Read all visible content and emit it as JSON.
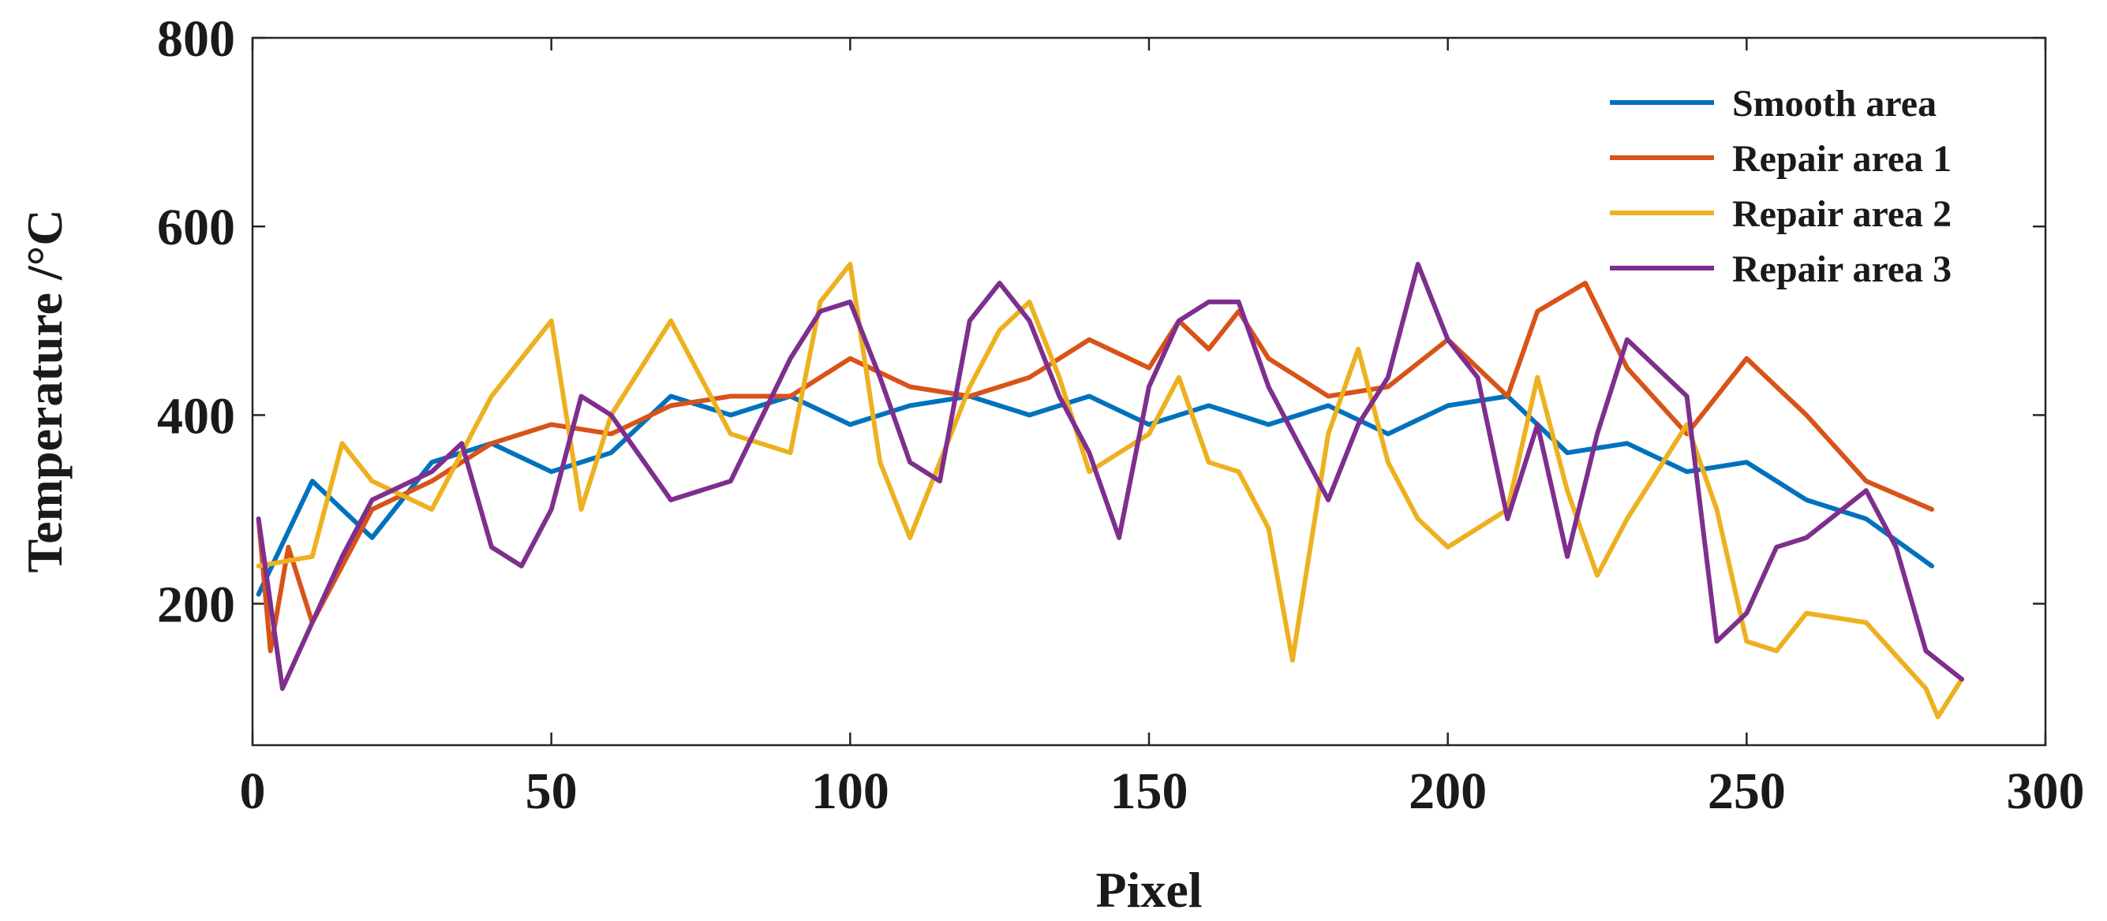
{
  "chart_data": {
    "type": "line",
    "title": "",
    "xlabel": "Pixel",
    "ylabel": "Temperature /°C",
    "xlim": [
      0,
      300
    ],
    "ylim": [
      50,
      800
    ],
    "xticks": [
      0,
      50,
      100,
      150,
      200,
      250,
      300
    ],
    "yticks": [
      200,
      400,
      600,
      800
    ],
    "xtick_labels": [
      "0",
      "50",
      "100",
      "150",
      "200",
      "250",
      "300"
    ],
    "ytick_labels": [
      "200",
      "400",
      "600",
      "800"
    ],
    "grid": false,
    "legend_position": "top-right",
    "series": [
      {
        "name": "Smooth area",
        "color": "#0072BD",
        "x": [
          1,
          10,
          20,
          30,
          40,
          50,
          60,
          70,
          80,
          90,
          100,
          110,
          120,
          130,
          140,
          150,
          160,
          170,
          180,
          190,
          200,
          210,
          220,
          230,
          240,
          250,
          260,
          270,
          281
        ],
        "y": [
          210,
          330,
          270,
          350,
          370,
          340,
          360,
          420,
          400,
          420,
          390,
          410,
          420,
          400,
          420,
          390,
          410,
          390,
          410,
          380,
          410,
          420,
          360,
          370,
          340,
          350,
          310,
          290,
          240
        ]
      },
      {
        "name": "Repair area 1",
        "color": "#D95319",
        "x": [
          1,
          3,
          6,
          10,
          20,
          30,
          40,
          50,
          60,
          70,
          80,
          90,
          100,
          110,
          120,
          130,
          140,
          150,
          155,
          160,
          165,
          170,
          180,
          190,
          200,
          210,
          215,
          223,
          230,
          240,
          250,
          260,
          270,
          281
        ],
        "y": [
          290,
          150,
          260,
          180,
          300,
          330,
          370,
          390,
          380,
          410,
          420,
          420,
          460,
          430,
          420,
          440,
          480,
          450,
          500,
          470,
          510,
          460,
          420,
          430,
          480,
          420,
          510,
          540,
          450,
          380,
          460,
          400,
          330,
          300
        ]
      },
      {
        "name": "Repair area 2",
        "color": "#EDB120",
        "x": [
          1,
          10,
          15,
          20,
          30,
          40,
          50,
          55,
          60,
          70,
          80,
          90,
          95,
          100,
          105,
          110,
          120,
          125,
          130,
          135,
          140,
          150,
          155,
          160,
          165,
          170,
          174,
          180,
          185,
          190,
          195,
          200,
          210,
          215,
          220,
          225,
          230,
          240,
          245,
          250,
          255,
          260,
          270,
          280,
          282,
          286
        ],
        "y": [
          240,
          250,
          370,
          330,
          300,
          420,
          500,
          300,
          400,
          500,
          380,
          360,
          520,
          560,
          350,
          270,
          430,
          490,
          520,
          440,
          340,
          380,
          440,
          350,
          340,
          280,
          140,
          380,
          470,
          350,
          290,
          260,
          300,
          440,
          320,
          230,
          290,
          390,
          300,
          160,
          150,
          190,
          180,
          110,
          80,
          120
        ]
      },
      {
        "name": "Repair area 3",
        "color": "#7E2F8E",
        "x": [
          1,
          5,
          10,
          15,
          20,
          30,
          35,
          40,
          45,
          50,
          55,
          60,
          70,
          80,
          90,
          95,
          100,
          105,
          110,
          115,
          120,
          125,
          130,
          135,
          140,
          145,
          150,
          155,
          160,
          165,
          170,
          175,
          180,
          185,
          190,
          195,
          200,
          205,
          210,
          215,
          220,
          225,
          230,
          240,
          245,
          250,
          255,
          260,
          270,
          275,
          280,
          286
        ],
        "y": [
          290,
          110,
          180,
          250,
          310,
          340,
          370,
          260,
          240,
          300,
          420,
          400,
          310,
          330,
          460,
          510,
          520,
          440,
          350,
          330,
          500,
          540,
          500,
          420,
          360,
          270,
          430,
          500,
          520,
          520,
          430,
          370,
          310,
          390,
          440,
          560,
          480,
          440,
          290,
          390,
          250,
          380,
          480,
          420,
          160,
          190,
          260,
          270,
          320,
          260,
          150,
          120
        ]
      }
    ]
  }
}
